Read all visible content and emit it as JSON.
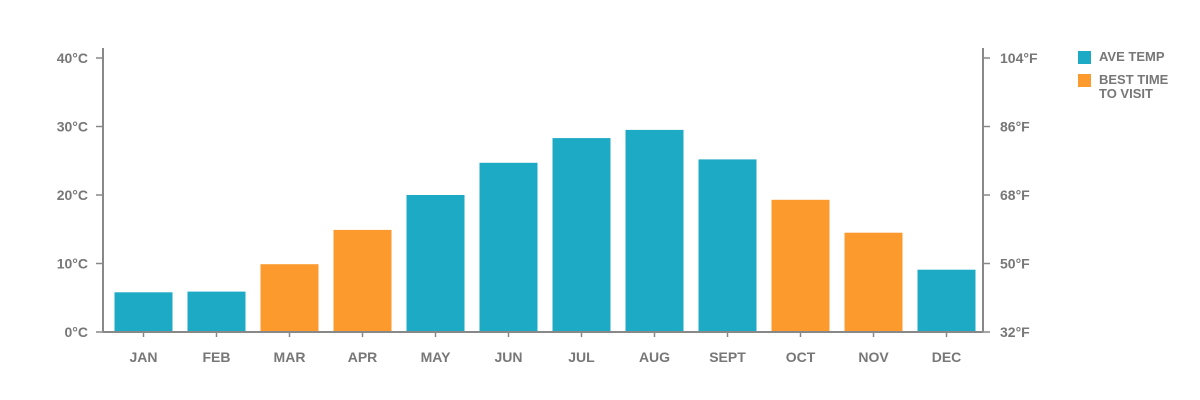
{
  "chart_data": {
    "type": "bar",
    "categories": [
      "JAN",
      "FEB",
      "MAR",
      "APR",
      "MAY",
      "JUN",
      "JUL",
      "AUG",
      "SEPT",
      "OCT",
      "NOV",
      "DEC"
    ],
    "values": [
      5.8,
      5.9,
      9.9,
      14.9,
      20.0,
      24.7,
      28.3,
      29.5,
      25.2,
      19.3,
      14.5,
      9.1
    ],
    "series": [
      {
        "name": "AVE TEMP",
        "color": "#1caac5",
        "months": [
          "JAN",
          "FEB",
          "MAY",
          "JUN",
          "JUL",
          "AUG",
          "SEPT",
          "DEC"
        ]
      },
      {
        "name": "BEST TIME\nTO VISIT",
        "color": "#fd9a2e",
        "months": [
          "MAR",
          "APR",
          "OCT",
          "NOV"
        ]
      }
    ],
    "title": "",
    "xlabel": "",
    "ylabel": "",
    "ylim": [
      0,
      40
    ],
    "y_ticks_left": [
      "0°C",
      "10°C",
      "20°C",
      "30°C",
      "40°C"
    ],
    "y_ticks_right": [
      "32°F",
      "50°F",
      "68°F",
      "86°F",
      "104°F"
    ],
    "grid": false,
    "legend_position": "top-right"
  }
}
